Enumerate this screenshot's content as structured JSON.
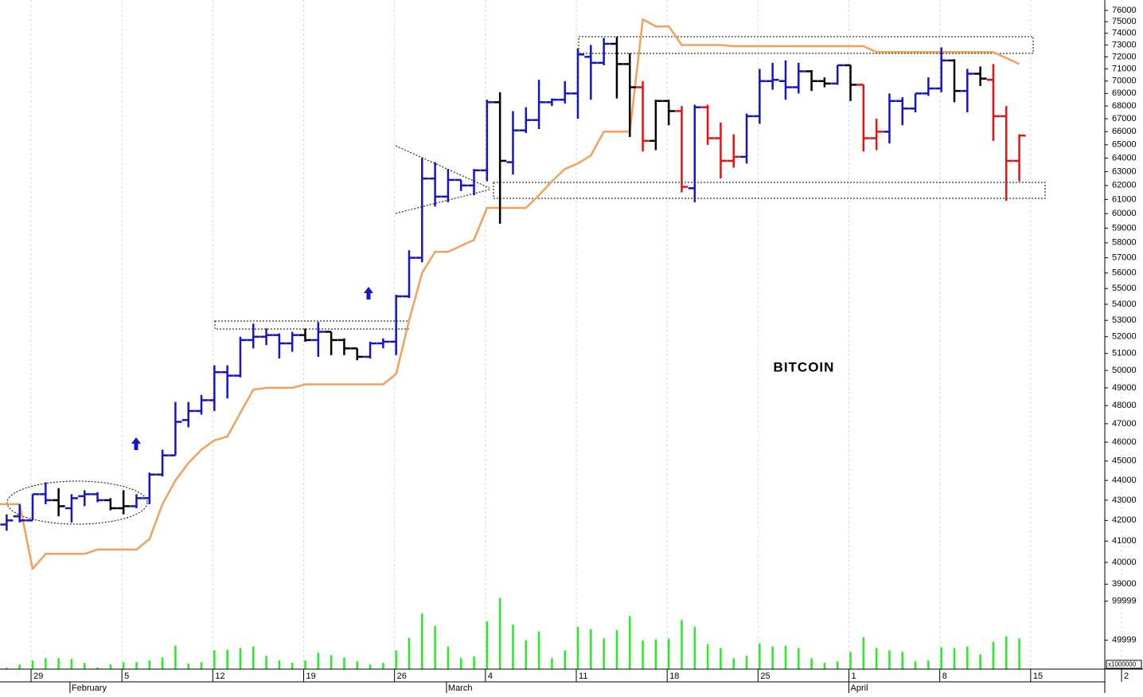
{
  "chart_data": {
    "type": "ohlc",
    "title": "BITCOIN",
    "categories": [
      null,
      null,
      "29",
      null,
      null,
      null,
      null,
      null,
      null,
      "5",
      null,
      null,
      null,
      null,
      null,
      null,
      "12",
      null,
      null,
      null,
      null,
      null,
      null,
      "19",
      null,
      null,
      null,
      null,
      null,
      null,
      "26",
      null,
      null,
      null,
      null,
      null,
      null,
      "4",
      null,
      null,
      null,
      null,
      null,
      null,
      "11",
      null,
      null,
      null,
      null,
      null,
      null,
      "18",
      null,
      null,
      null,
      null,
      null,
      null,
      "25",
      null,
      null,
      null,
      null,
      null,
      null,
      "1",
      null,
      null,
      null,
      null,
      null,
      null,
      "8",
      null,
      null,
      null,
      null,
      null,
      null,
      "15",
      null,
      null,
      null,
      null,
      null,
      null,
      "2"
    ],
    "months": [
      {
        "value": 5,
        "label": "February"
      },
      {
        "value": 34,
        "label": "March"
      },
      {
        "value": 65,
        "label": "April"
      }
    ],
    "ohlc": [
      [
        41800,
        42300,
        41500,
        42000
      ],
      [
        42200,
        42800,
        41900,
        42000
      ],
      [
        42000,
        43300,
        42000,
        43300
      ],
      [
        43300,
        43900,
        42800,
        43000
      ],
      [
        43000,
        43600,
        42200,
        42700
      ],
      [
        42600,
        43300,
        41900,
        43100
      ],
      [
        43200,
        43500,
        42700,
        43300
      ],
      [
        43300,
        43400,
        42900,
        43000
      ],
      [
        43000,
        43100,
        42500,
        42600
      ],
      [
        42600,
        43500,
        42300,
        42700
      ],
      [
        42700,
        43300,
        42600,
        43100
      ],
      [
        43100,
        44400,
        42800,
        44300
      ],
      [
        44300,
        45600,
        44200,
        45300
      ],
      [
        45300,
        48200,
        45300,
        47100
      ],
      [
        47200,
        48200,
        46800,
        47700
      ],
      [
        47700,
        48600,
        47500,
        48300
      ],
      [
        48300,
        50300,
        47700,
        49900
      ],
      [
        49900,
        50300,
        48400,
        49700
      ],
      [
        49700,
        52000,
        49600,
        51800
      ],
      [
        51800,
        52800,
        51300,
        52000
      ],
      [
        52000,
        52500,
        51500,
        52100
      ],
      [
        52100,
        52200,
        50700,
        51600
      ],
      [
        51600,
        52300,
        51100,
        52100
      ],
      [
        52100,
        52500,
        51700,
        51800
      ],
      [
        51800,
        52900,
        50800,
        52300
      ],
      [
        52300,
        52300,
        50900,
        51800
      ],
      [
        51800,
        51900,
        50900,
        51300
      ],
      [
        51300,
        51300,
        50600,
        50800
      ],
      [
        50800,
        51700,
        50700,
        51600
      ],
      [
        51600,
        51900,
        51300,
        51700
      ],
      [
        51700,
        54600,
        50900,
        54500
      ],
      [
        54500,
        57500,
        54400,
        57000
      ],
      [
        57000,
        64000,
        56700,
        62500
      ],
      [
        62500,
        63700,
        60500,
        61200
      ],
      [
        61200,
        63200,
        60800,
        62400
      ],
      [
        62400,
        62400,
        61600,
        62000
      ],
      [
        62000,
        63200,
        61300,
        63100
      ],
      [
        63100,
        68500,
        62300,
        68300
      ],
      [
        68300,
        69100,
        59300,
        63800
      ],
      [
        63700,
        67600,
        62800,
        66100
      ],
      [
        66100,
        67900,
        65900,
        66900
      ],
      [
        66900,
        70100,
        66200,
        68300
      ],
      [
        68300,
        68600,
        68000,
        68500
      ],
      [
        68500,
        70000,
        68200,
        69000
      ],
      [
        69000,
        72700,
        67000,
        72200
      ],
      [
        72000,
        73000,
        68500,
        71500
      ],
      [
        71500,
        73600,
        71300,
        73100
      ],
      [
        73100,
        73700,
        68600,
        71400
      ],
      [
        71400,
        72300,
        65600,
        69500
      ],
      [
        69500,
        70000,
        64500,
        65300
      ],
      [
        65300,
        68500,
        64600,
        68400
      ],
      [
        68400,
        68500,
        66500,
        67600
      ],
      [
        67600,
        68000,
        61500,
        61900
      ],
      [
        61800,
        68100,
        60800,
        67900
      ],
      [
        67900,
        68100,
        65000,
        65500
      ],
      [
        65500,
        66700,
        62500,
        63800
      ],
      [
        63800,
        65800,
        63300,
        64100
      ],
      [
        64100,
        67400,
        63600,
        67200
      ],
      [
        67200,
        71000,
        66600,
        70000
      ],
      [
        70000,
        71500,
        69300,
        70100
      ],
      [
        70000,
        71700,
        68500,
        69500
      ],
      [
        69500,
        71500,
        69000,
        70800
      ],
      [
        70800,
        70900,
        69200,
        70000
      ],
      [
        70000,
        70300,
        69500,
        69800
      ],
      [
        69800,
        71300,
        69700,
        71300
      ],
      [
        71300,
        71300,
        68400,
        69700
      ],
      [
        69700,
        69700,
        64500,
        65500
      ],
      [
        65500,
        67000,
        64600,
        66000
      ],
      [
        66000,
        69000,
        65100,
        68400
      ],
      [
        68400,
        68700,
        66500,
        67800
      ],
      [
        67800,
        69000,
        67500,
        69000
      ],
      [
        69000,
        70300,
        68800,
        69400
      ],
      [
        69400,
        72800,
        69100,
        71700
      ],
      [
        71700,
        71800,
        68300,
        69200
      ],
      [
        69200,
        71000,
        67500,
        70600
      ],
      [
        70600,
        71200,
        69600,
        70200
      ],
      [
        70100,
        71400,
        65300,
        67200
      ],
      [
        67200,
        68000,
        60900,
        63800
      ],
      [
        63800,
        65800,
        62300,
        65700
      ],
      null,
      null,
      null,
      null,
      null,
      null,
      null,
      null
    ],
    "bar_colors": [
      "#1414c8",
      "#1414c8",
      "#1414c8",
      "#1414c8",
      "#000000",
      "#1414c8",
      "#1414c8",
      "#1414c8",
      "#000000",
      "#000000",
      "#1414c8",
      "#1414c8",
      "#1414c8",
      "#1414c8",
      "#1414c8",
      "#1414c8",
      "#1414c8",
      "#1414c8",
      "#1414c8",
      "#1414c8",
      "#1414c8",
      "#1414c8",
      "#1414c8",
      "#000000",
      "#1414c8",
      "#000000",
      "#000000",
      "#000000",
      "#1414c8",
      "#1414c8",
      "#1414c8",
      "#1414c8",
      "#1414c8",
      "#1414c8",
      "#1414c8",
      "#1414c8",
      "#1414c8",
      "#1414c8",
      "#000000",
      "#1414c8",
      "#1414c8",
      "#1414c8",
      "#1414c8",
      "#1414c8",
      "#1414c8",
      "#1414c8",
      "#1414c8",
      "#000000",
      "#000000",
      "#e81010",
      "#000000",
      "#000000",
      "#e81010",
      "#1414c8",
      "#e81010",
      "#e81010",
      "#e81010",
      "#1414c8",
      "#1414c8",
      "#1414c8",
      "#1414c8",
      "#1414c8",
      "#000000",
      "#000000",
      "#1414c8",
      "#000000",
      "#e81010",
      "#e81010",
      "#1414c8",
      "#1414c8",
      "#1414c8",
      "#1414c8",
      "#1414c8",
      "#000000",
      "#1414c8",
      "#000000",
      "#e81010",
      "#e81010",
      "#e81010",
      null,
      null,
      null,
      null,
      null,
      null,
      null,
      null
    ],
    "trail": [
      42800,
      42800,
      39700,
      40400,
      40400,
      40400,
      40400,
      40600,
      40600,
      40600,
      40600,
      41100,
      42800,
      44000,
      44900,
      45600,
      46100,
      46300,
      47600,
      48900,
      49000,
      49000,
      49000,
      49200,
      49200,
      49200,
      49200,
      49200,
      49200,
      49200,
      49800,
      53000,
      56000,
      57400,
      57400,
      57800,
      58200,
      60400,
      60400,
      60400,
      60400,
      61300,
      62300,
      63200,
      63600,
      64200,
      66000,
      66000,
      66000,
      75200,
      74600,
      74600,
      73000,
      73000,
      73000,
      73000,
      72900,
      72900,
      72900,
      72900,
      72900,
      72900,
      72900,
      72900,
      72900,
      72900,
      72900,
      72400,
      72400,
      72400,
      72400,
      72400,
      72400,
      72400,
      72400,
      72400,
      72400,
      71900,
      71400,
      null,
      null,
      null,
      null,
      null,
      null,
      null,
      null
    ],
    "trail_color": "#f5a05a",
    "volume": [
      15000,
      19000,
      24000,
      27000,
      27000,
      26000,
      21000,
      15000,
      19000,
      22000,
      22000,
      24000,
      28000,
      43000,
      20000,
      22000,
      37000,
      38000,
      40000,
      42000,
      30000,
      24000,
      21000,
      24000,
      34000,
      31000,
      28000,
      23000,
      19000,
      21000,
      37000,
      53000,
      84000,
      68000,
      42000,
      27000,
      29000,
      74000,
      104000,
      70000,
      50000,
      61000,
      27000,
      37000,
      67000,
      64000,
      52000,
      63000,
      81000,
      50000,
      51000,
      52000,
      76000,
      67000,
      45000,
      40000,
      27000,
      30000,
      46000,
      42000,
      43000,
      40000,
      27000,
      21000,
      23000,
      35000,
      54000,
      40000,
      37000,
      35000,
      23000,
      24000,
      41000,
      40000,
      42000,
      32000,
      48000,
      55000,
      52000,
      null,
      null,
      null,
      null,
      null,
      null,
      null,
      null
    ],
    "volume_color": "#22ee22",
    "ylim": [
      38760,
      76920
    ],
    "yticks": [
      76000,
      75000,
      74000,
      73000,
      72000,
      71000,
      70000,
      69000,
      68000,
      67000,
      66000,
      65000,
      64000,
      63000,
      62000,
      61000,
      60000,
      59000,
      58000,
      57000,
      56000,
      55000,
      54000,
      53000,
      52000,
      51000,
      50000,
      49000,
      48000,
      47000,
      46000,
      45000,
      44000,
      43000,
      42000,
      41000,
      40000,
      39000
    ],
    "log_y": true,
    "volume_ylim": [
      13000,
      115000
    ],
    "volume_yticks": [
      99999,
      49999
    ],
    "volume_unit": "x1000000",
    "grid_x": true
  }
}
